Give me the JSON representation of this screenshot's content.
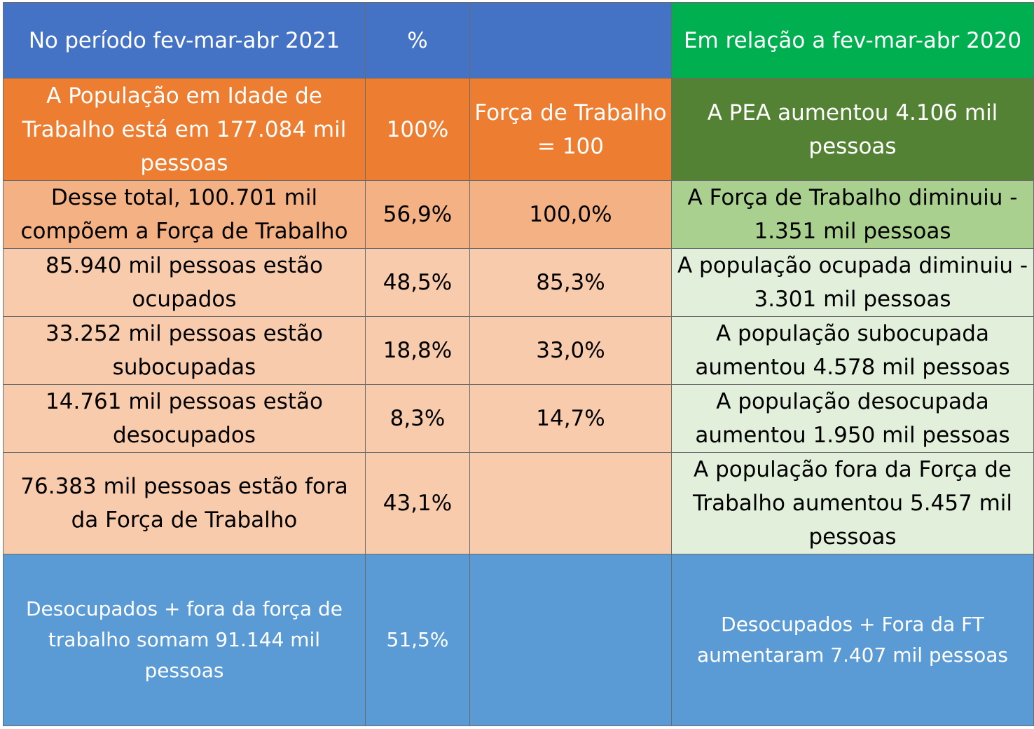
{
  "header": {
    "period_label": "No período fev-mar-abr 2021",
    "percent_label": "%",
    "col3_label": "",
    "comparison_label": "Em relação a fev-mar-abr 2020"
  },
  "rows": [
    {
      "description": "A População em Idade de Trabalho está em 177.084 mil pessoas",
      "percent": "100%",
      "labor_force_pct": "Força de Trabalho = 100",
      "change": "A PEA  aumentou 4.106 mil pessoas"
    },
    {
      "description": "Desse total, 100.701 mil compõem a Força de Trabalho",
      "percent": "56,9%",
      "labor_force_pct": "100,0%",
      "change": "A Força de Trabalho  diminuiu - 1.351 mil pessoas"
    },
    {
      "description": "85.940 mil pessoas estão ocupados",
      "percent": "48,5%",
      "labor_force_pct": "85,3%",
      "change": "A população ocupada  diminuiu - 3.301 mil pessoas"
    },
    {
      "description": "33.252 mil pessoas estão subocupadas",
      "percent": "18,8%",
      "labor_force_pct": "33,0%",
      "change": "A população subocupada aumentou 4.578 mil pessoas"
    },
    {
      "description": "14.761 mil pessoas estão desocupados",
      "percent": "8,3%",
      "labor_force_pct": "14,7%",
      "change": "A população desocupada aumentou 1.950 mil pessoas"
    },
    {
      "description": "76.383 mil pessoas estão fora da Força de Trabalho",
      "percent": "43,1%",
      "labor_force_pct": "",
      "change": "A população fora da Força de Trabalho  aumentou 5.457 mil pessoas"
    },
    {
      "description": "Desocupados + fora da força de trabalho somam 91.144 mil pessoas",
      "percent": "51,5%",
      "labor_force_pct": "",
      "change": "Desocupados + Fora da FT aumentaram 7.407 mil pessoas"
    }
  ],
  "colors": {
    "header_blue": "#4472c4",
    "header_green": "#00b050",
    "orange": "#ed7d31",
    "dark_green": "#548235",
    "salmon": "#f4b183",
    "peach": "#f8cbad",
    "light_green": "#a9d08e",
    "pale_green": "#e2efda",
    "summary_blue": "#5b9bd5"
  }
}
